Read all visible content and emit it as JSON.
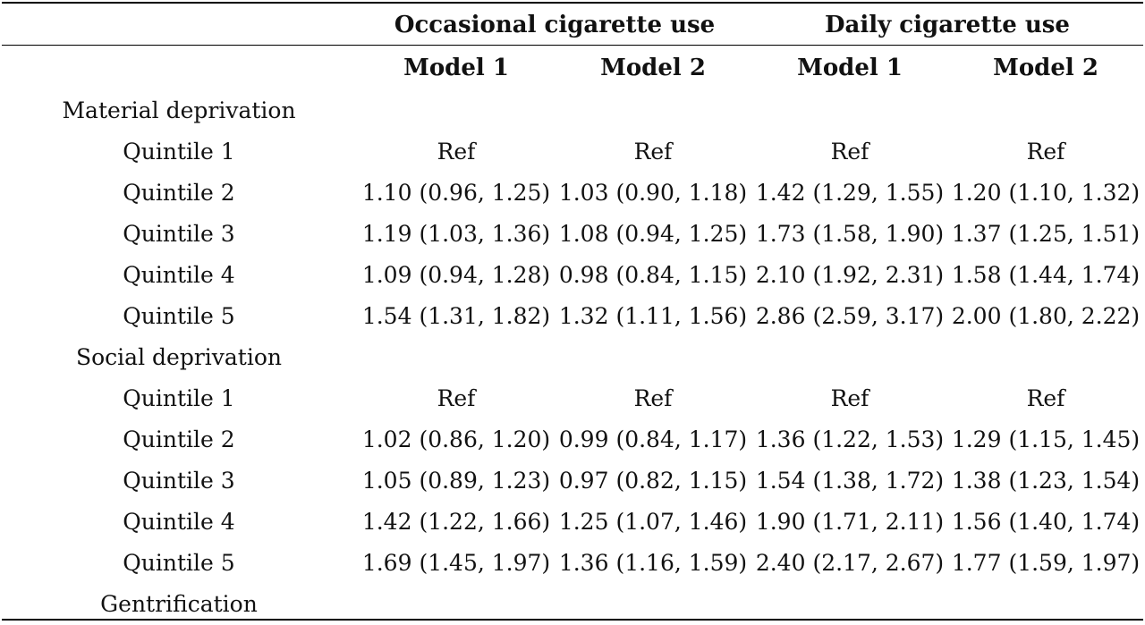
{
  "table": {
    "group_headers": [
      "Occasional cigarette use",
      "Daily cigarette use"
    ],
    "model_headers": [
      "Model 1",
      "Model 2",
      "Model 1",
      "Model 2"
    ],
    "rows": [
      {
        "label": "Material deprivation",
        "cells": [
          "",
          "",
          "",
          ""
        ]
      },
      {
        "label": "Quintile 1",
        "cells": [
          "Ref",
          "Ref",
          "Ref",
          "Ref"
        ]
      },
      {
        "label": "Quintile 2",
        "cells": [
          "1.10 (0.96, 1.25)",
          "1.03 (0.90, 1.18)",
          "1.42 (1.29, 1.55)",
          "1.20 (1.10, 1.32)"
        ]
      },
      {
        "label": "Quintile 3",
        "cells": [
          "1.19 (1.03, 1.36)",
          "1.08 (0.94, 1.25)",
          "1.73 (1.58, 1.90)",
          "1.37 (1.25, 1.51)"
        ]
      },
      {
        "label": "Quintile 4",
        "cells": [
          "1.09 (0.94, 1.28)",
          "0.98 (0.84, 1.15)",
          "2.10 (1.92, 2.31)",
          "1.58 (1.44, 1.74)"
        ]
      },
      {
        "label": "Quintile 5",
        "cells": [
          "1.54 (1.31, 1.82)",
          "1.32 (1.11, 1.56)",
          "2.86 (2.59, 3.17)",
          "2.00 (1.80, 2.22)"
        ]
      },
      {
        "label": "Social deprivation",
        "cells": [
          "",
          "",
          "",
          ""
        ]
      },
      {
        "label": "Quintile 1",
        "cells": [
          "Ref",
          "Ref",
          "Ref",
          "Ref"
        ]
      },
      {
        "label": "Quintile 2",
        "cells": [
          "1.02 (0.86, 1.20)",
          "0.99 (0.84, 1.17)",
          "1.36 (1.22, 1.53)",
          "1.29 (1.15, 1.45)"
        ]
      },
      {
        "label": "Quintile 3",
        "cells": [
          "1.05 (0.89, 1.23)",
          "0.97 (0.82, 1.15)",
          "1.54 (1.38, 1.72)",
          "1.38 (1.23, 1.54)"
        ]
      },
      {
        "label": "Quintile 4",
        "cells": [
          "1.42 (1.22, 1.66)",
          "1.25 (1.07, 1.46)",
          "1.90 (1.71, 2.11)",
          "1.56 (1.40, 1.74)"
        ]
      },
      {
        "label": "Quintile 5",
        "cells": [
          "1.69 (1.45, 1.97)",
          "1.36 (1.16, 1.59)",
          "2.40 (2.17, 2.67)",
          "1.77 (1.59, 1.97)"
        ]
      },
      {
        "label": "Gentrification",
        "cells": [
          "",
          "",
          "",
          ""
        ]
      }
    ]
  }
}
